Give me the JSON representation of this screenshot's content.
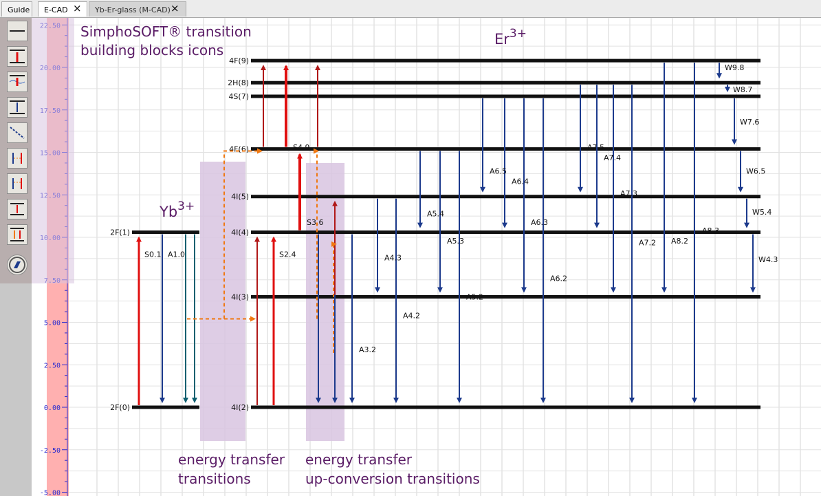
{
  "tabs": [
    {
      "label": "Guide",
      "active": false
    },
    {
      "label": "E-CAD",
      "active": true
    },
    {
      "label": "Yb-Er-glass (M-CAD)",
      "active": false
    }
  ],
  "toolbar_icons": [
    "ground-state-line-icon",
    "absorption-icon",
    "excited-absorption-icon",
    "emission-icon",
    "nonradiative-decay-icon",
    "energy-transfer-icon",
    "cross-relaxation-icon",
    "upconversion-icon",
    "cooperative-transfer-icon",
    "compass-icon"
  ],
  "colors": {
    "absorption": "#e01010",
    "absorption_dark": "#b01818",
    "emission": "#1c3a8c",
    "emission_teal": "#106070",
    "transfer": "#f07810",
    "level": "#111111",
    "annotation": "#5a1c66",
    "highlight": "#d8c4e0",
    "axis_band": "#ffb0b0"
  },
  "axis": {
    "ticks": [
      "22.50",
      "20.00",
      "17.50",
      "15.00",
      "12.50",
      "10.00",
      "7.50",
      "5.00",
      "2.50",
      "0.00",
      "-2.50",
      "-5.00"
    ]
  },
  "annotations": {
    "icons_line1": "SimphoSOFT® transition",
    "icons_line2": "building blocks icons",
    "yb_base": "Yb",
    "yb_sup": "3+",
    "er_base": "Er",
    "er_sup": "3+",
    "et_line1": "energy transfer",
    "et_line2": "transitions",
    "up_line1": "energy transfer",
    "up_line2": "up-conversion transitions"
  },
  "chart_data": {
    "type": "energy-level-diagram",
    "y_unit": "",
    "ylim": [
      -5.0,
      22.5
    ],
    "species": [
      "Yb3+",
      "Er3+"
    ],
    "levels": [
      {
        "label": "2F(0)",
        "species": "Yb",
        "energy": 0.0
      },
      {
        "label": "2F(1)",
        "species": "Yb",
        "energy": 10.3
      },
      {
        "label": "4I(2)",
        "species": "Er",
        "energy": 0.0
      },
      {
        "label": "4I(3)",
        "species": "Er",
        "energy": 6.5
      },
      {
        "label": "4I(4)",
        "species": "Er",
        "energy": 10.3
      },
      {
        "label": "4I(5)",
        "species": "Er",
        "energy": 12.4
      },
      {
        "label": "4F(6)",
        "species": "Er",
        "energy": 15.2
      },
      {
        "label": "4S(7)",
        "species": "Er",
        "energy": 18.3
      },
      {
        "label": "2H(8)",
        "species": "Er",
        "energy": 19.1
      },
      {
        "label": "4F(9)",
        "species": "Er",
        "energy": 20.4
      }
    ],
    "transitions": [
      {
        "label": "S0.1",
        "from": 0.0,
        "to": 10.3,
        "kind": "absorption"
      },
      {
        "label": "A1.0",
        "from": 10.3,
        "to": 0.0,
        "kind": "emission"
      },
      {
        "label": "S2.4",
        "from": 0.0,
        "to": 10.3,
        "kind": "absorption"
      },
      {
        "label": "S3.6",
        "from": 10.3,
        "to": 15.2,
        "kind": "absorption"
      },
      {
        "label": "S4.9",
        "from": 15.2,
        "to": 20.4,
        "kind": "absorption"
      },
      {
        "label": "A3.2",
        "from": 10.3,
        "to": 0.0,
        "kind": "emission"
      },
      {
        "label": "A4.2",
        "from": 12.4,
        "to": 0.0,
        "kind": "emission"
      },
      {
        "label": "A4.3",
        "from": 12.4,
        "to": 6.5,
        "kind": "emission"
      },
      {
        "label": "A5.2",
        "from": 15.2,
        "to": 0.0,
        "kind": "emission"
      },
      {
        "label": "A5.3",
        "from": 15.2,
        "to": 6.5,
        "kind": "emission"
      },
      {
        "label": "A5.4",
        "from": 15.2,
        "to": 10.3,
        "kind": "emission"
      },
      {
        "label": "A6.2",
        "from": 18.3,
        "to": 0.0,
        "kind": "emission"
      },
      {
        "label": "A6.3",
        "from": 18.3,
        "to": 6.5,
        "kind": "emission"
      },
      {
        "label": "A6.4",
        "from": 18.3,
        "to": 10.3,
        "kind": "emission"
      },
      {
        "label": "A6.5",
        "from": 18.3,
        "to": 12.4,
        "kind": "emission"
      },
      {
        "label": "A7.2",
        "from": 19.1,
        "to": 0.0,
        "kind": "emission"
      },
      {
        "label": "A7.3",
        "from": 19.1,
        "to": 6.5,
        "kind": "emission"
      },
      {
        "label": "A7.4",
        "from": 19.1,
        "to": 10.3,
        "kind": "emission"
      },
      {
        "label": "A7.5",
        "from": 19.1,
        "to": 12.4,
        "kind": "emission"
      },
      {
        "label": "A8.2",
        "from": 20.4,
        "to": 0.0,
        "kind": "emission"
      },
      {
        "label": "A8.3",
        "from": 20.4,
        "to": 6.5,
        "kind": "emission"
      },
      {
        "label": "W9.8",
        "from": 20.4,
        "to": 19.1,
        "kind": "nonradiative"
      },
      {
        "label": "W8.7",
        "from": 19.1,
        "to": 18.3,
        "kind": "nonradiative"
      },
      {
        "label": "W7.6",
        "from": 18.3,
        "to": 15.2,
        "kind": "nonradiative"
      },
      {
        "label": "W6.5",
        "from": 15.2,
        "to": 12.4,
        "kind": "nonradiative"
      },
      {
        "label": "W5.4",
        "from": 12.4,
        "to": 10.3,
        "kind": "nonradiative"
      },
      {
        "label": "W4.3",
        "from": 10.3,
        "to": 6.5,
        "kind": "nonradiative"
      }
    ]
  }
}
